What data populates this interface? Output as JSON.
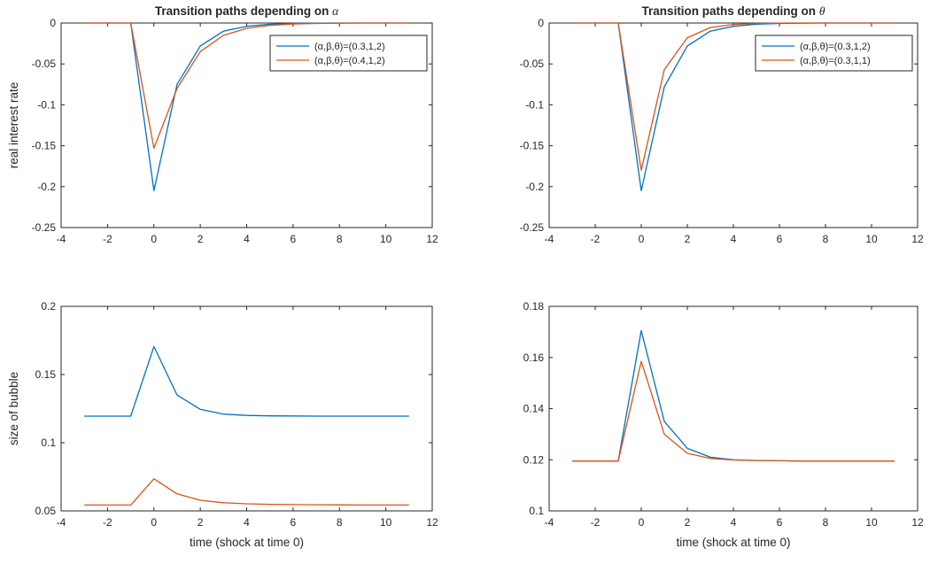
{
  "chart_data": [
    {
      "type": "line",
      "title": "Transition paths depending on ",
      "title_symbol": "α",
      "xlabel": "",
      "ylabel": "real interest rate",
      "xlim": [
        -4,
        12
      ],
      "ylim": [
        -0.25,
        0
      ],
      "xticks": [
        -4,
        -2,
        0,
        2,
        4,
        6,
        8,
        10,
        12
      ],
      "xtick_labels": [
        "-4",
        "-2",
        "0",
        "2",
        "4",
        "6",
        "8",
        "10",
        "12"
      ],
      "yticks": [
        -0.25,
        -0.2,
        -0.15,
        -0.1,
        -0.05,
        0
      ],
      "ytick_labels": [
        "-0.25",
        "-0.2",
        "-0.15",
        "-0.1",
        "-0.05",
        "0"
      ],
      "legend_position": "top-right",
      "x": [
        -3,
        -2,
        -1,
        0,
        1,
        2,
        3,
        4,
        5,
        6,
        7,
        8,
        9,
        10,
        11
      ],
      "series": [
        {
          "name": "(α,β,θ)=(0.3,1,2)",
          "color": "#0072BD",
          "values": [
            0,
            0,
            0,
            -0.205,
            -0.075,
            -0.028,
            -0.01,
            -0.004,
            -0.0015,
            -0.0005,
            -0.0002,
            0,
            0,
            0,
            0
          ]
        },
        {
          "name": "(α,β,θ)=(0.4,1,2)",
          "color": "#D95319",
          "values": [
            0,
            0,
            0,
            -0.153,
            -0.08,
            -0.035,
            -0.015,
            -0.0065,
            -0.0028,
            -0.0012,
            -0.0005,
            -0.0002,
            0,
            0,
            0
          ]
        }
      ]
    },
    {
      "type": "line",
      "title": "Transition paths depending on ",
      "title_symbol": "θ",
      "xlabel": "",
      "ylabel": "",
      "xlim": [
        -4,
        12
      ],
      "ylim": [
        -0.25,
        0
      ],
      "xticks": [
        -4,
        -2,
        0,
        2,
        4,
        6,
        8,
        10,
        12
      ],
      "xtick_labels": [
        "-4",
        "-2",
        "0",
        "2",
        "4",
        "6",
        "8",
        "10",
        "12"
      ],
      "yticks": [
        -0.25,
        -0.2,
        -0.15,
        -0.1,
        -0.05,
        0
      ],
      "ytick_labels": [
        "-0.25",
        "-0.2",
        "-0.15",
        "-0.1",
        "-0.05",
        "0"
      ],
      "legend_position": "top-right",
      "x": [
        -3,
        -2,
        -1,
        0,
        1,
        2,
        3,
        4,
        5,
        6,
        7,
        8,
        9,
        10,
        11
      ],
      "series": [
        {
          "name": "(α,β,θ)=(0.3,1,2)",
          "color": "#0072BD",
          "values": [
            0,
            0,
            0,
            -0.205,
            -0.078,
            -0.028,
            -0.01,
            -0.004,
            -0.0015,
            -0.0005,
            -0.0002,
            0,
            0,
            0,
            0
          ]
        },
        {
          "name": "(α,β,θ)=(0.3,1,1)",
          "color": "#D95319",
          "values": [
            0,
            0,
            0,
            -0.18,
            -0.057,
            -0.018,
            -0.0055,
            -0.0017,
            -0.0005,
            -0.0001,
            0,
            0,
            0,
            0,
            0
          ]
        }
      ]
    },
    {
      "type": "line",
      "title": "",
      "title_symbol": "",
      "xlabel": "time (shock at time 0)",
      "ylabel": "size of bubble",
      "xlim": [
        -4,
        12
      ],
      "ylim": [
        0.05,
        0.2
      ],
      "xticks": [
        -4,
        -2,
        0,
        2,
        4,
        6,
        8,
        10,
        12
      ],
      "xtick_labels": [
        "-4",
        "-2",
        "0",
        "2",
        "4",
        "6",
        "8",
        "10",
        "12"
      ],
      "yticks": [
        0.05,
        0.1,
        0.15,
        0.2
      ],
      "ytick_labels": [
        "0.05",
        "0.1",
        "0.15",
        "0.2"
      ],
      "legend_position": "none",
      "x": [
        -3,
        -2,
        -1,
        0,
        1,
        2,
        3,
        4,
        5,
        6,
        7,
        8,
        9,
        10,
        11
      ],
      "series": [
        {
          "color": "#0072BD",
          "values": [
            0.1195,
            0.1195,
            0.1195,
            0.1705,
            0.135,
            0.1245,
            0.121,
            0.12,
            0.1197,
            0.1196,
            0.1195,
            0.1195,
            0.1195,
            0.1195,
            0.1195
          ]
        },
        {
          "color": "#D95319",
          "values": [
            0.0543,
            0.0543,
            0.0543,
            0.0735,
            0.0625,
            0.0578,
            0.056,
            0.0552,
            0.0548,
            0.0546,
            0.0545,
            0.0544,
            0.0543,
            0.0543,
            0.0543
          ]
        }
      ]
    },
    {
      "type": "line",
      "title": "",
      "title_symbol": "",
      "xlabel": "time (shock at time 0)",
      "ylabel": "",
      "xlim": [
        -4,
        12
      ],
      "ylim": [
        0.1,
        0.18
      ],
      "xticks": [
        -4,
        -2,
        0,
        2,
        4,
        6,
        8,
        10,
        12
      ],
      "xtick_labels": [
        "-4",
        "-2",
        "0",
        "2",
        "4",
        "6",
        "8",
        "10",
        "12"
      ],
      "yticks": [
        0.1,
        0.12,
        0.14,
        0.16,
        0.18
      ],
      "ytick_labels": [
        "0.1",
        "0.12",
        "0.14",
        "0.16",
        "0.18"
      ],
      "legend_position": "none",
      "x": [
        -3,
        -2,
        -1,
        0,
        1,
        2,
        3,
        4,
        5,
        6,
        7,
        8,
        9,
        10,
        11
      ],
      "series": [
        {
          "color": "#0072BD",
          "values": [
            0.1195,
            0.1195,
            0.1195,
            0.1705,
            0.135,
            0.1245,
            0.121,
            0.12,
            0.1197,
            0.1196,
            0.1195,
            0.1195,
            0.1195,
            0.1195,
            0.1195
          ]
        },
        {
          "color": "#D95319",
          "values": [
            0.1195,
            0.1195,
            0.1195,
            0.1585,
            0.13,
            0.1225,
            0.1205,
            0.1199,
            0.1197,
            0.1196,
            0.1195,
            0.1195,
            0.1195,
            0.1195,
            0.1195
          ]
        }
      ]
    }
  ]
}
